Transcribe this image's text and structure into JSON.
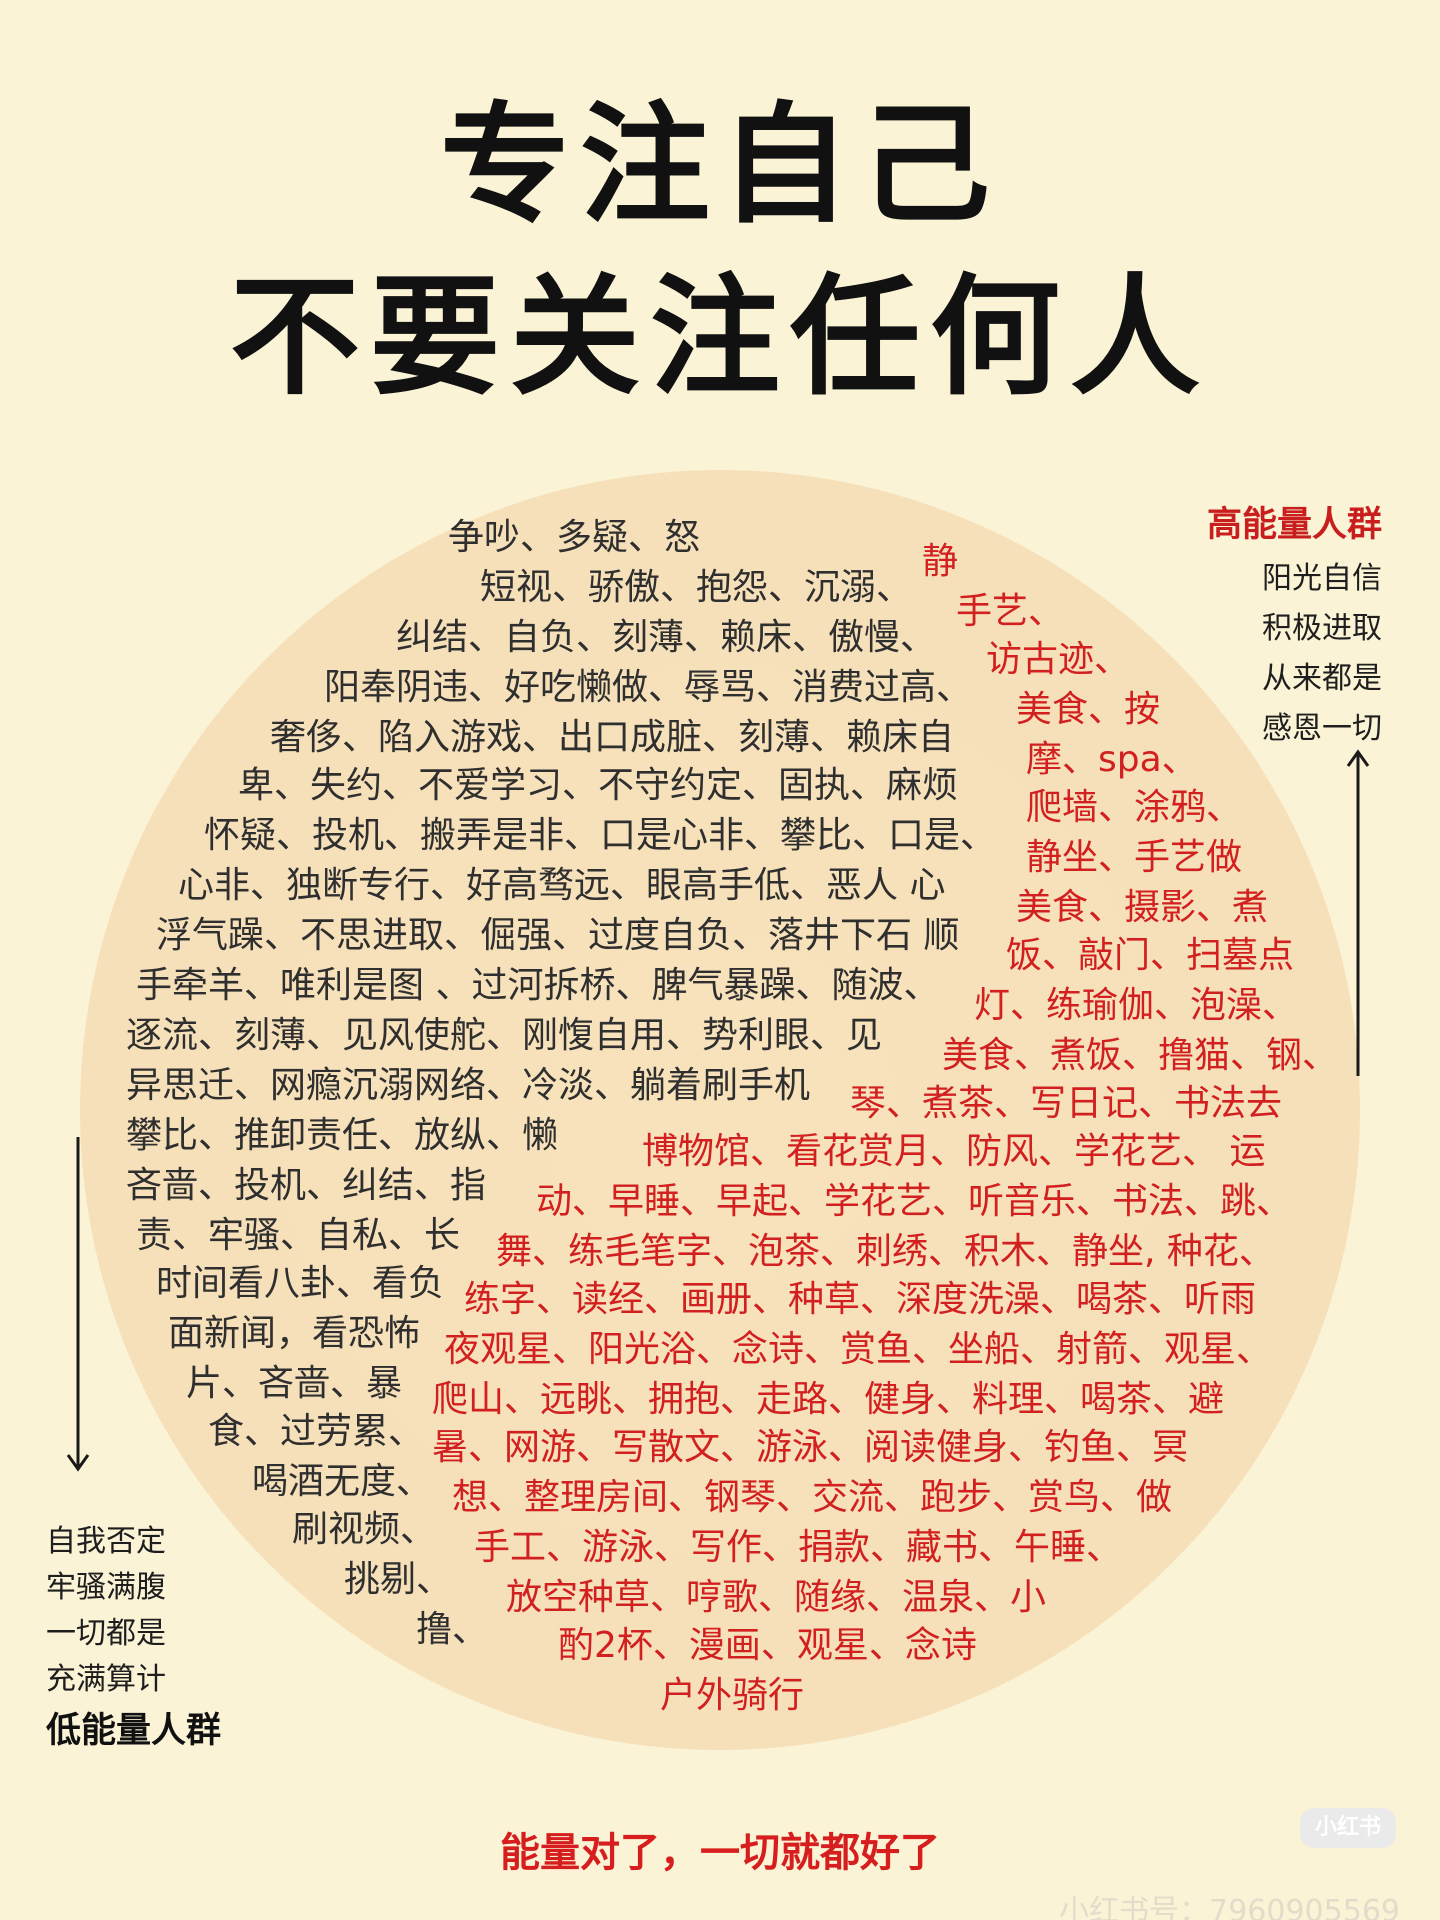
{
  "title": {
    "line1": "专注自己",
    "line2": "不要关注任何人"
  },
  "high_energy": {
    "heading": "高能量人群",
    "lines": [
      "阳光自信",
      "积极进取",
      "从来都是",
      "感恩一切"
    ]
  },
  "low_energy": {
    "heading": "低能量人群",
    "lines": [
      "自我否定",
      "牢骚满腹",
      "一切都是",
      "充满算计"
    ]
  },
  "negative_lines": [
    "争吵、多疑、怒",
    "短视、骄傲、抱怨、沉溺、",
    "纠结、自负、刻薄、赖床、傲慢、",
    "阳奉阴违、好吃懒做、辱骂、消费过高、",
    "奢侈、陷入游戏、出口成脏、刻薄、赖床自",
    "卑、失约、不爱学习、不守约定、固执、麻烦",
    "怀疑、投机、搬弄是非、口是心非、攀比、口是、",
    "心非、独断专行、好高骛远、眼高手低、恶人 心",
    "浮气躁、不思进取、倔强、过度自负、落井下石 顺",
    "手牵羊、唯利是图 、过河拆桥、脾气暴躁、随波、",
    "逐流、刻薄、见风使舵、刚愎自用、势利眼、见",
    "异思迁、网瘾沉溺网络、冷淡、躺着刷手机",
    "攀比、推卸责任、放纵、懒",
    "吝啬、投机、纠结、指",
    "责、牢骚、自私、长",
    "时间看八卦、看负",
    "面新闻，看恐怖",
    "片、吝啬、暴",
    "食、过劳累、",
    "喝酒无度、",
    "刷视频、",
    "挑剔、",
    "撸、"
  ],
  "positive_lines": [
    "静",
    "手艺、",
    "访古迹、",
    "美食、按",
    "摩、spa、",
    "爬墙、涂鸦、",
    "静坐、手艺做",
    "美食、摄影、煮",
    "饭、敲门、扫墓点",
    "灯、练瑜伽、泡澡、",
    "美食、煮饭、撸猫、钢、",
    "琴、煮茶、写日记、书法去",
    "博物馆、看花赏月、防风、学花艺、 运",
    "动、早睡、早起、学花艺、听音乐、书法、跳、",
    "舞、练毛笔字、泡茶、刺绣、积木、静坐, 种花、",
    "练字、读经、画册、种草、深度洗澡、喝茶、听雨",
    "夜观星、阳光浴、念诗、赏鱼、坐船、射箭、观星、",
    "爬山、远眺、拥抱、走路、健身、料理、喝茶、避",
    "暑、网游、写散文、游泳、阅读健身、钓鱼、冥",
    "想、整理房间、钢琴、交流、跑步、赏鸟、做",
    "手工、游泳、写作、捐款、藏书、午睡、",
    "放空种草、哼歌、随缘、温泉、小",
    "酌2杯、漫画、观星、念诗",
    "户外骑行"
  ],
  "footer": "能量对了，一切就都好了",
  "watermark": {
    "logo": "小红书",
    "id": "小红书号：7960905569"
  },
  "colors": {
    "background": "#fbf3d6",
    "circle": "#f6e0ba",
    "positive": "#d21f1f",
    "negative": "#2f2f2f"
  },
  "icons": [
    "arrow-up-icon",
    "arrow-down-icon"
  ]
}
